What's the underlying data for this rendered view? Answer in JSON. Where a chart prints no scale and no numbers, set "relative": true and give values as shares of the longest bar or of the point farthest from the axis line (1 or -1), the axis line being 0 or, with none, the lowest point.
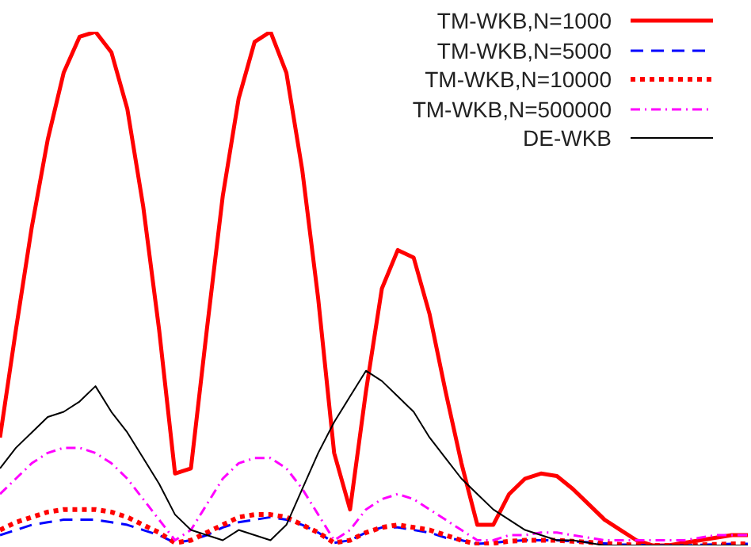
{
  "chart_data": {
    "type": "line",
    "relative": true,
    "legend": "top right",
    "marker": "none",
    "categories": [
      null,
      null,
      null,
      null,
      null,
      null,
      null,
      null,
      null,
      null,
      null,
      null,
      null,
      null,
      null,
      null,
      null,
      null,
      null,
      null,
      null,
      null,
      null,
      null,
      null,
      null,
      null,
      null,
      null,
      null,
      null,
      null,
      null,
      null,
      null,
      null,
      null,
      null,
      null,
      null,
      null,
      null,
      null,
      null,
      null,
      null,
      null,
      null
    ],
    "series": [
      {
        "name": "TM-WKB,N=1000",
        "color": "#ff0000",
        "line_style": "solid",
        "values": [
          0.21,
          0.42,
          0.62,
          0.79,
          0.92,
          0.99,
          1.0,
          0.96,
          0.85,
          0.66,
          0.42,
          0.14,
          0.15,
          0.42,
          0.68,
          0.87,
          0.98,
          1.0,
          0.92,
          0.73,
          0.48,
          0.18,
          0.07,
          0.3,
          0.5,
          0.575,
          0.56,
          0.45,
          0.3,
          0.16,
          0.04,
          0.04,
          0.1,
          0.13,
          0.14,
          0.135,
          0.11,
          0.08,
          0.05,
          0.03,
          0.01,
          0.0,
          0.0,
          0.005,
          0.01,
          0.015,
          0.02,
          0.02
        ]
      },
      {
        "name": "TM-WKB,N=5000",
        "color": "#0000ff",
        "line_style": "dashed",
        "values": [
          0.02,
          0.03,
          0.04,
          0.045,
          0.05,
          0.05,
          0.05,
          0.045,
          0.04,
          0.03,
          0.02,
          0.005,
          0.01,
          0.02,
          0.035,
          0.045,
          0.05,
          0.055,
          0.05,
          0.04,
          0.025,
          0.005,
          0.01,
          0.025,
          0.035,
          0.035,
          0.03,
          0.025,
          0.015,
          0.01,
          0.003,
          0.005,
          0.008,
          0.01,
          0.01,
          0.01,
          0.008,
          0.006,
          0.004,
          0.002,
          0.001,
          0.0,
          0.0,
          0.0,
          0.001,
          0.002,
          0.003,
          0.003
        ]
      },
      {
        "name": "TM-WKB,N=10000",
        "color": "#ff0000",
        "line_style": "dotted",
        "values": [
          0.03,
          0.045,
          0.055,
          0.065,
          0.07,
          0.07,
          0.07,
          0.065,
          0.055,
          0.04,
          0.025,
          0.005,
          0.01,
          0.025,
          0.04,
          0.055,
          0.06,
          0.06,
          0.055,
          0.04,
          0.025,
          0.005,
          0.01,
          0.025,
          0.035,
          0.04,
          0.035,
          0.03,
          0.02,
          0.01,
          0.002,
          0.004,
          0.008,
          0.01,
          0.01,
          0.01,
          0.008,
          0.006,
          0.004,
          0.002,
          0.001,
          0.0,
          0.0,
          0.0,
          0.001,
          0.002,
          0.003,
          0.003
        ]
      },
      {
        "name": "TM-WKB,N=500000",
        "color": "#ff00ff",
        "line_style": "dashdot",
        "values": [
          0.1,
          0.13,
          0.16,
          0.18,
          0.19,
          0.19,
          0.18,
          0.16,
          0.13,
          0.09,
          0.05,
          0.01,
          0.03,
          0.08,
          0.13,
          0.16,
          0.17,
          0.17,
          0.15,
          0.11,
          0.06,
          0.01,
          0.03,
          0.07,
          0.09,
          0.1,
          0.09,
          0.07,
          0.05,
          0.03,
          0.01,
          0.01,
          0.02,
          0.02,
          0.025,
          0.025,
          0.02,
          0.015,
          0.01,
          0.01,
          0.01,
          0.01,
          0.01,
          0.01,
          0.015,
          0.02,
          0.02,
          0.02
        ]
      },
      {
        "name": "DE-WKB",
        "color": "#000000",
        "line_style": "solid",
        "values": [
          0.15,
          0.19,
          0.22,
          0.25,
          0.26,
          0.28,
          0.31,
          0.26,
          0.22,
          0.17,
          0.12,
          0.06,
          0.03,
          0.02,
          0.01,
          0.03,
          0.02,
          0.01,
          0.04,
          0.11,
          0.18,
          0.24,
          0.29,
          0.34,
          0.32,
          0.29,
          0.26,
          0.21,
          0.17,
          0.13,
          0.1,
          0.07,
          0.05,
          0.03,
          0.02,
          0.01,
          0.01,
          0.005,
          0.0,
          0.0,
          0.0,
          0.0,
          0.0,
          0.0,
          0.0,
          0.0,
          0.0,
          0.0
        ]
      }
    ]
  }
}
